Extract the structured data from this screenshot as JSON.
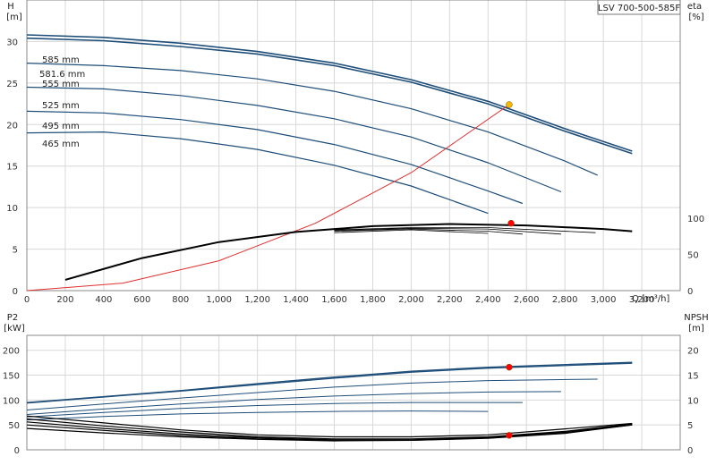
{
  "window_title": "LSV 700-500-585F",
  "colors": {
    "curve": "#1f4e79",
    "efficiency": "#000000",
    "system": "#e03030",
    "duty_point": "#ff0000",
    "bep_point": "#f5b800"
  },
  "chart_data": [
    {
      "type": "line",
      "title": "LSV 700-500-585F",
      "xlabel": "Q [m³/h]",
      "ylabel": "H",
      "ylabel_unit": "[m]",
      "y2label": "eta",
      "y2label_unit": "[%]",
      "xlim": [
        0,
        3400
      ],
      "ylim": [
        0,
        35
      ],
      "y2lim": [
        0,
        100
      ],
      "grid": true,
      "xticks": [
        "0",
        "200",
        "400",
        "600",
        "800",
        "1,000",
        "1,200",
        "1,400",
        "1,600",
        "1,800",
        "2,000",
        "2,200",
        "2,400",
        "2,600",
        "2,800",
        "3,000",
        "3,200"
      ],
      "yticks": [
        "0",
        "5",
        "10",
        "15",
        "20",
        "25",
        "30"
      ],
      "y2ticks": [
        "0",
        "50",
        "100"
      ],
      "series": [
        {
          "name": "585 mm",
          "x": [
            0,
            400,
            800,
            1200,
            1600,
            2000,
            2400,
            2800,
            3150
          ],
          "y": [
            30.8,
            30.5,
            29.8,
            28.8,
            27.4,
            25.4,
            22.8,
            19.5,
            16.8
          ]
        },
        {
          "name": "581.6 mm",
          "x": [
            0,
            400,
            800,
            1200,
            1600,
            2000,
            2400,
            2800,
            3150
          ],
          "y": [
            30.4,
            30.1,
            29.4,
            28.5,
            27.1,
            25.1,
            22.5,
            19.2,
            16.5
          ]
        },
        {
          "name": "555 mm",
          "x": [
            0,
            400,
            800,
            1200,
            1600,
            2000,
            2400,
            2800,
            2970
          ],
          "y": [
            27.4,
            27.1,
            26.5,
            25.5,
            24.0,
            21.9,
            19.1,
            15.6,
            13.9
          ]
        },
        {
          "name": "525 mm",
          "x": [
            0,
            400,
            800,
            1200,
            1600,
            2000,
            2400,
            2780
          ],
          "y": [
            24.5,
            24.3,
            23.5,
            22.3,
            20.7,
            18.5,
            15.4,
            11.9
          ]
        },
        {
          "name": "495 mm",
          "x": [
            0,
            400,
            800,
            1200,
            1600,
            2000,
            2400,
            2580
          ],
          "y": [
            21.6,
            21.4,
            20.6,
            19.4,
            17.6,
            15.2,
            12.0,
            10.5
          ]
        },
        {
          "name": "465 mm",
          "x": [
            0,
            400,
            800,
            1200,
            1600,
            2000,
            2400
          ],
          "y": [
            19.0,
            19.1,
            18.3,
            17.0,
            15.1,
            12.6,
            9.3
          ]
        }
      ],
      "efficiency": [
        {
          "x": [
            200,
            600,
            1000,
            1400,
            1800,
            2200,
            2600,
            3000,
            3150
          ],
          "y": [
            15,
            45,
            67,
            81,
            89,
            92,
            90,
            85,
            82
          ]
        },
        {
          "x": [
            1600,
            2000,
            2400,
            2960
          ],
          "y": [
            84,
            87,
            87,
            80
          ]
        },
        {
          "x": [
            1600,
            2000,
            2400,
            2780
          ],
          "y": [
            83,
            86,
            85,
            78
          ]
        },
        {
          "x": [
            1600,
            2000,
            2400,
            2580
          ],
          "y": [
            82,
            85,
            82,
            78
          ]
        },
        {
          "x": [
            1600,
            2000,
            2400
          ],
          "y": [
            80,
            84,
            79
          ]
        }
      ],
      "system_curve": {
        "x": [
          0,
          500,
          1000,
          1500,
          2000,
          2510
        ],
        "y": [
          0,
          0.9,
          3.6,
          8.1,
          14.2,
          22.4
        ]
      },
      "duty_point": {
        "x": 2510,
        "y": 22.4
      },
      "efficiency_point": {
        "x": 2520,
        "y": 93
      },
      "curve_labels": [
        "585 mm",
        "581.6 mm",
        "555 mm",
        "525 mm",
        "495 mm",
        "465 mm"
      ]
    },
    {
      "type": "line",
      "ylabel": "P2",
      "ylabel_unit": "[kW]",
      "y2label": "NPSH",
      "y2label_unit": "[m]",
      "xlim": [
        0,
        3400
      ],
      "ylim": [
        0,
        230
      ],
      "y2lim": [
        0,
        23
      ],
      "grid": true,
      "yticks": [
        "0",
        "50",
        "100",
        "150",
        "200"
      ],
      "y2ticks": [
        "0",
        "5",
        "10",
        "15",
        "20"
      ],
      "power": [
        {
          "name": "585 mm",
          "x": [
            0,
            400,
            800,
            1200,
            1600,
            2000,
            2400,
            3150
          ],
          "y": [
            95,
            107,
            119,
            133,
            146,
            158,
            166,
            176
          ]
        },
        {
          "name": "581.6 mm",
          "x": [
            0,
            400,
            800,
            1200,
            1600,
            2000,
            2400,
            3150
          ],
          "y": [
            94,
            106,
            118,
            131,
            144,
            156,
            164,
            174
          ]
        },
        {
          "name": "555 mm",
          "x": [
            0,
            400,
            800,
            1200,
            1600,
            2000,
            2400,
            2970
          ],
          "y": [
            80,
            92,
            104,
            115,
            126,
            134,
            139,
            142
          ]
        },
        {
          "name": "525 mm",
          "x": [
            0,
            400,
            800,
            1200,
            1600,
            2000,
            2400,
            2780
          ],
          "y": [
            71,
            82,
            92,
            101,
            108,
            113,
            116,
            117
          ]
        },
        {
          "name": "495 mm",
          "x": [
            0,
            400,
            800,
            1200,
            1600,
            2000,
            2400,
            2580
          ],
          "y": [
            66,
            75,
            83,
            89,
            93,
            95,
            95,
            95
          ]
        },
        {
          "name": "465 mm",
          "x": [
            0,
            400,
            800,
            1200,
            1600,
            2000,
            2400
          ],
          "y": [
            60,
            67,
            72,
            75,
            77,
            78,
            77
          ]
        }
      ],
      "npsh": [
        {
          "x": [
            0,
            400,
            800,
            1200,
            1600,
            2000,
            2400,
            2800,
            3150
          ],
          "y": [
            6.8,
            5.4,
            4.0,
            3.0,
            2.6,
            2.6,
            3.0,
            4.2,
            5.3
          ]
        },
        {
          "x": [
            0,
            400,
            800,
            1200,
            1600,
            2000,
            2400,
            2800,
            3150
          ],
          "y": [
            6.2,
            4.8,
            3.6,
            2.6,
            2.2,
            2.2,
            2.6,
            3.7,
            5.2
          ]
        },
        {
          "x": [
            0,
            400,
            800,
            1200,
            1600,
            2000,
            2400,
            2800,
            3150
          ],
          "y": [
            5.6,
            4.3,
            3.2,
            2.4,
            2.0,
            2.0,
            2.5,
            3.5,
            5.1
          ]
        },
        {
          "x": [
            0,
            400,
            800,
            1200,
            1600,
            2000,
            2400,
            2800,
            3150
          ],
          "y": [
            5.0,
            3.9,
            2.9,
            2.2,
            1.9,
            1.9,
            2.4,
            3.4,
            5.0
          ]
        },
        {
          "x": [
            0,
            400,
            800,
            1200,
            1600,
            2000,
            2400,
            2800,
            3150
          ],
          "y": [
            4.3,
            3.4,
            2.6,
            2.1,
            1.8,
            1.9,
            2.3,
            3.3,
            5.0
          ]
        }
      ],
      "power_point": {
        "x": 2510,
        "y": 166
      },
      "npsh_point": {
        "x": 2510,
        "y": 2.9
      }
    }
  ]
}
